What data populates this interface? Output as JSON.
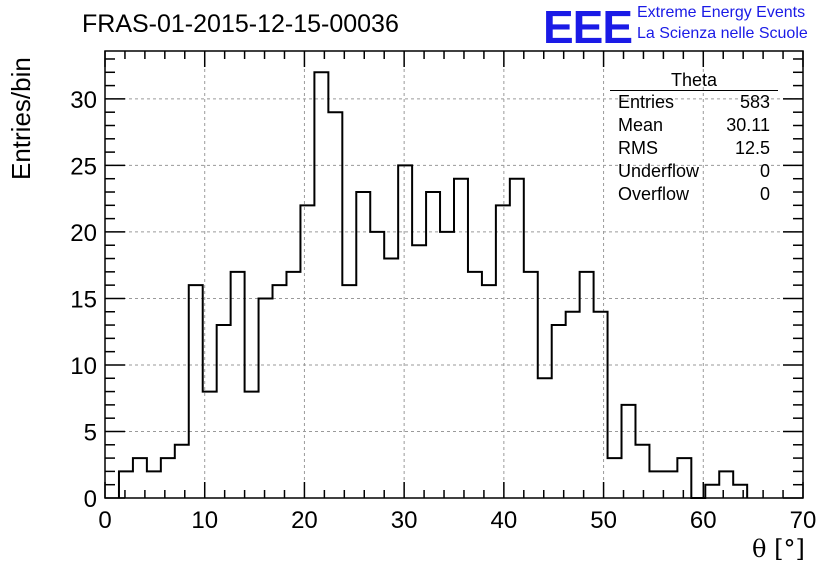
{
  "header": {
    "title": "FRAS-01-2015-12-15-00036"
  },
  "logo": {
    "mark": "EEE",
    "line1": "Extreme Energy Events",
    "line2": "La Scienza nelle Scuole",
    "color": "#1a1ae6"
  },
  "stats_box": {
    "title": "Theta",
    "rows": [
      {
        "label": "Entries",
        "value": "583"
      },
      {
        "label": "Mean",
        "value": "30.11"
      },
      {
        "label": "RMS",
        "value": "12.5"
      },
      {
        "label": "Underflow",
        "value": "0"
      },
      {
        "label": "Overflow",
        "value": "0"
      }
    ]
  },
  "chart_data": {
    "type": "bar",
    "style": "step-histogram",
    "title": "FRAS-01-2015-12-15-00036",
    "xlabel": "θ [°]",
    "ylabel": "Entries/bin",
    "xlim": [
      0,
      70
    ],
    "ylim": [
      0,
      33.6
    ],
    "bin_width": 1.4,
    "bin_start": 1.4,
    "values": [
      2,
      3,
      2,
      3,
      4,
      16,
      8,
      13,
      17,
      8,
      15,
      16,
      17,
      22,
      32,
      29,
      16,
      23,
      20,
      18,
      25,
      19,
      23,
      20,
      24,
      17,
      16,
      22,
      24,
      17,
      9,
      13,
      14,
      17,
      14,
      3,
      7,
      4,
      2,
      2,
      3,
      0,
      1,
      2,
      1
    ],
    "x_ticks": [
      "0",
      "10",
      "20",
      "30",
      "40",
      "50",
      "60",
      "70"
    ],
    "y_ticks": [
      "0",
      "5",
      "10",
      "15",
      "20",
      "25",
      "30"
    ],
    "grid": true,
    "line_color": "#000000"
  }
}
